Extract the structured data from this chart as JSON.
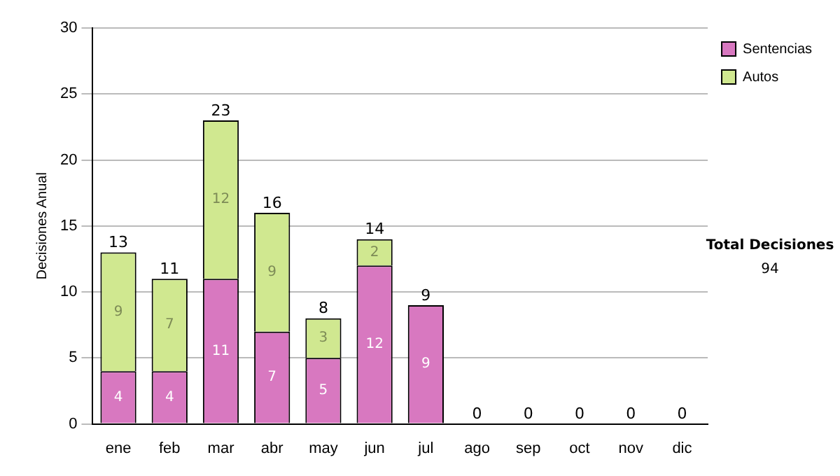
{
  "chart_data": {
    "type": "bar",
    "stacked": true,
    "ylabel": "Decisiones Anual",
    "categories": [
      "ene",
      "feb",
      "mar",
      "abr",
      "may",
      "jun",
      "jul",
      "ago",
      "sep",
      "oct",
      "nov",
      "dic"
    ],
    "series": [
      {
        "name": "Sentencias",
        "color": "#d878c0",
        "values": [
          4,
          4,
          11,
          7,
          5,
          12,
          9,
          0,
          0,
          0,
          0,
          0
        ],
        "value_labels": [
          "4",
          "4",
          "11",
          "7",
          "5",
          "12",
          "9",
          null,
          null,
          null,
          null,
          null
        ]
      },
      {
        "name": "Autos",
        "color": "#d0e890",
        "values": [
          9,
          7,
          12,
          9,
          3,
          2,
          0,
          0,
          0,
          0,
          0,
          0
        ],
        "value_labels": [
          "9",
          "7",
          "12",
          "9",
          "3",
          "2",
          null,
          null,
          null,
          null,
          null,
          null
        ]
      }
    ],
    "totals": [
      "13",
      "11",
      "23",
      "16",
      "8",
      "14",
      "9",
      "0",
      "0",
      "0",
      "0",
      "0"
    ],
    "ylim": [
      0,
      30
    ],
    "yticks": [
      0,
      5,
      10,
      15,
      20,
      25,
      30
    ],
    "grid": "y",
    "legend": "right",
    "annotations": [
      "Total Decisiones",
      "94"
    ]
  }
}
